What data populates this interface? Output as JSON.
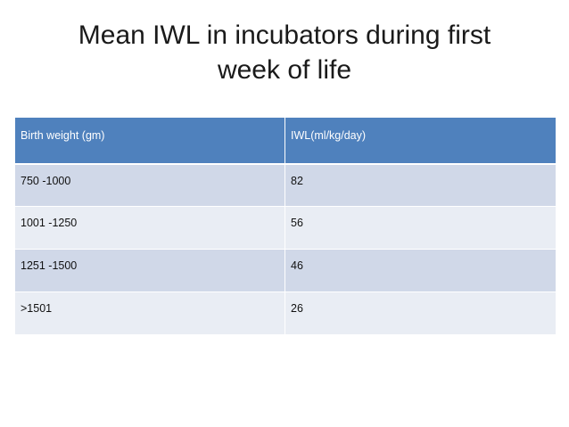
{
  "slide": {
    "title_line1": "Mean IWL in incubators during first",
    "title_line2": "week of life"
  },
  "table": {
    "headers": [
      "Birth weight (gm)",
      "IWL(ml/kg/day)"
    ],
    "rows": [
      [
        "750 -1000",
        "82"
      ],
      [
        "1001 -1250",
        "56"
      ],
      [
        "1251 -1500",
        "46"
      ],
      [
        ">1501",
        "26"
      ]
    ]
  },
  "colors": {
    "header_bg": "#4f81bd",
    "row_odd_bg": "#d0d8e8",
    "row_even_bg": "#e9edf4"
  }
}
